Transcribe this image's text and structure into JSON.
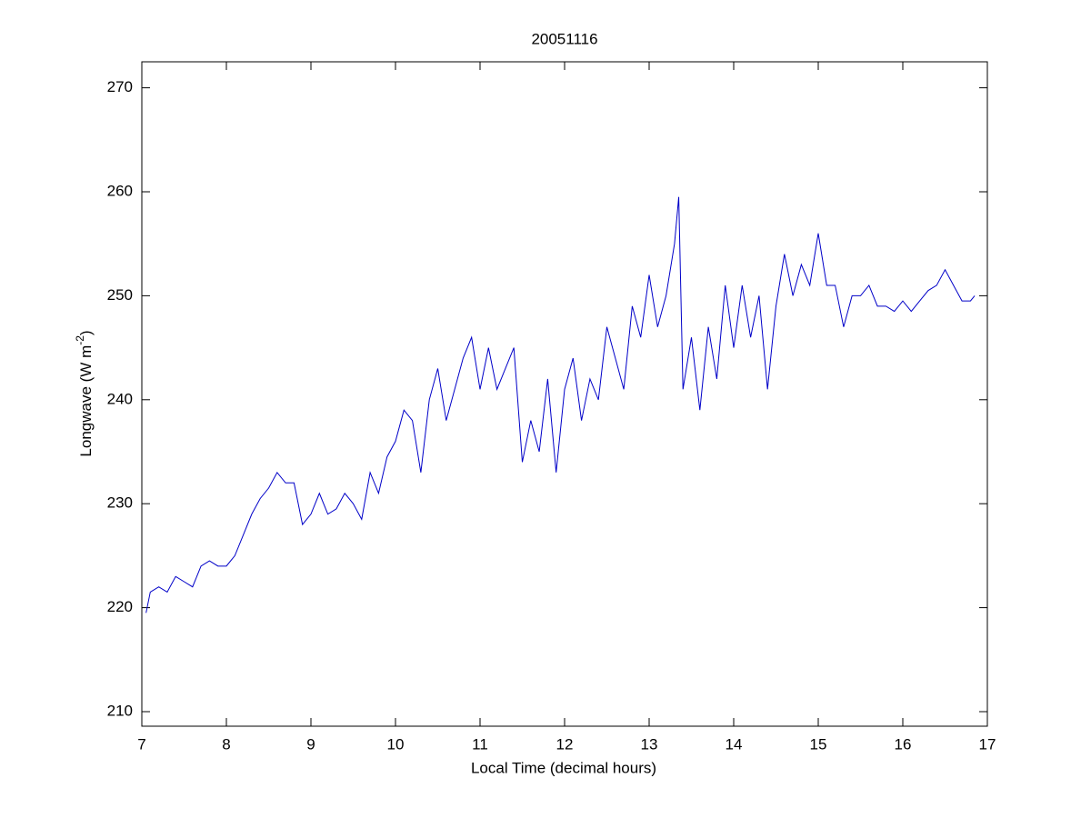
{
  "chart_data": {
    "type": "line",
    "title": "20051116",
    "xlabel": "Local Time (decimal hours)",
    "ylabel": [
      "Longwave (W m",
      "-2",
      ")"
    ],
    "xlim": [
      7,
      17
    ],
    "xticks": [
      7,
      8,
      9,
      10,
      11,
      12,
      13,
      14,
      15,
      16,
      17
    ],
    "ylim": [
      208.6,
      272.5
    ],
    "yticks": [
      210,
      220,
      230,
      240,
      250,
      260,
      270
    ],
    "grid": false,
    "series": [
      {
        "color": "#0000c8",
        "x": [
          7.05,
          7.1,
          7.2,
          7.3,
          7.4,
          7.5,
          7.6,
          7.7,
          7.8,
          7.9,
          8.0,
          8.1,
          8.2,
          8.3,
          8.4,
          8.5,
          8.6,
          8.7,
          8.8,
          8.9,
          9.0,
          9.1,
          9.2,
          9.3,
          9.4,
          9.5,
          9.6,
          9.7,
          9.8,
          9.9,
          10.0,
          10.1,
          10.2,
          10.3,
          10.4,
          10.5,
          10.6,
          10.7,
          10.8,
          10.9,
          11.0,
          11.1,
          11.2,
          11.3,
          11.4,
          11.5,
          11.6,
          11.7,
          11.8,
          11.9,
          12.0,
          12.1,
          12.2,
          12.3,
          12.4,
          12.5,
          12.6,
          12.7,
          12.8,
          12.9,
          13.0,
          13.1,
          13.2,
          13.3,
          13.35,
          13.4,
          13.5,
          13.6,
          13.7,
          13.8,
          13.9,
          14.0,
          14.1,
          14.2,
          14.3,
          14.4,
          14.5,
          14.6,
          14.7,
          14.8,
          14.9,
          15.0,
          15.1,
          15.2,
          15.3,
          15.4,
          15.5,
          15.6,
          15.7,
          15.8,
          15.9,
          16.0,
          16.1,
          16.2,
          16.3,
          16.4,
          16.5,
          16.6,
          16.7,
          16.8,
          16.85
        ],
        "values": [
          219.5,
          221.5,
          222,
          221.5,
          223,
          222.5,
          222,
          224,
          224.5,
          224,
          224,
          225,
          227,
          229,
          230.5,
          231.5,
          233,
          232,
          232,
          228,
          229,
          231,
          229,
          229.5,
          231,
          230,
          228.5,
          233,
          231,
          234.5,
          236,
          239,
          238,
          233,
          240,
          243,
          238,
          241,
          244,
          246,
          241,
          245,
          241,
          243,
          245,
          234,
          238,
          235,
          242,
          233,
          241,
          244,
          238,
          242,
          240,
          247,
          244,
          241,
          249,
          246,
          252,
          247,
          250,
          255,
          259.5,
          241,
          246,
          239,
          247,
          242,
          251,
          245,
          251,
          246,
          250,
          241,
          249,
          254,
          250,
          253,
          251,
          256,
          251,
          251,
          247,
          250,
          250,
          251,
          249,
          249,
          248.5,
          249.5,
          248.5,
          249.5,
          250.5,
          251,
          252.5,
          251,
          249.5,
          249.5,
          250
        ]
      }
    ]
  }
}
